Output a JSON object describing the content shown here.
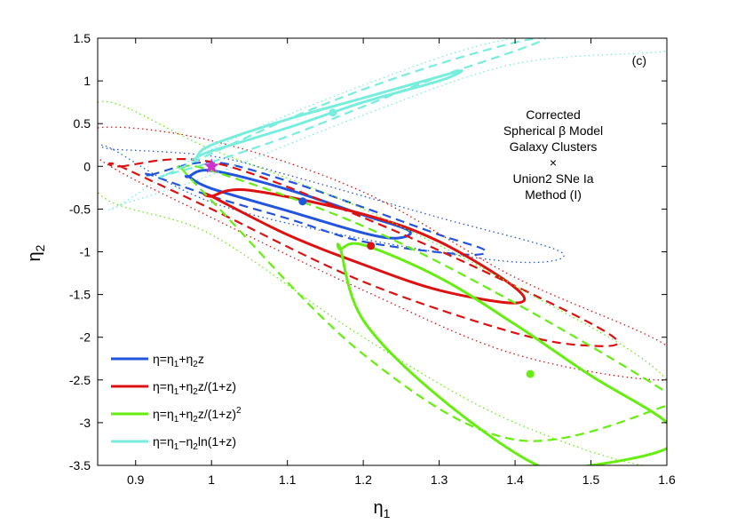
{
  "chart_data": {
    "type": "contour",
    "panel_label": "(c)",
    "xlabel": "η",
    "xlabel_sub": "1",
    "ylabel": "η",
    "ylabel_sub": "2",
    "xlim": [
      0.85,
      1.6
    ],
    "ylim": [
      -3.5,
      1.5
    ],
    "xticks": [
      0.9,
      1.0,
      1.1,
      1.2,
      1.3,
      1.4,
      1.5,
      1.6
    ],
    "xtick_labels": [
      "0.9",
      "1",
      "1.1",
      "1.2",
      "1.3",
      "1.4",
      "1.5",
      "1.6"
    ],
    "yticks": [
      1.5,
      1.0,
      0.5,
      0.0,
      -0.5,
      -1.0,
      -1.5,
      -2.0,
      -2.5,
      -3.0,
      -3.5
    ],
    "ytick_labels": [
      "1.5",
      "1",
      "0.5",
      "0",
      "-0.5",
      "-1",
      "-1.5",
      "-2",
      "-2.5",
      "-3",
      "-3.5"
    ],
    "annotation_lines": [
      "Corrected",
      "Spherical β Model",
      "Galaxy Clusters",
      "×",
      "Union2 SNe Ia",
      "Method (I)"
    ],
    "reference_point": {
      "name": "η1=1, η2=0",
      "x": 1.0,
      "y": 0.0,
      "color": "#cc33cc"
    },
    "series": [
      {
        "name": "linear",
        "legend": "η=η1+η2z",
        "legend_parts": [
          "η=η",
          "1",
          "+η",
          "2",
          "z",
          "",
          ""
        ],
        "color": "#2255dd",
        "best_fit": [
          1.12,
          -0.41
        ],
        "contours": [
          {
            "level": "68.3%",
            "style": "solid",
            "x": [
              0.97,
              1.0,
              1.1,
              1.2,
              1.26,
              1.245,
              1.2,
              1.1,
              1.0,
              0.97
            ],
            "y": [
              -0.12,
              -0.05,
              -0.27,
              -0.57,
              -0.75,
              -0.84,
              -0.78,
              -0.52,
              -0.26,
              -0.12
            ]
          },
          {
            "level": "95.4%",
            "style": "dashed",
            "x": [
              0.92,
              1.0,
              1.1,
              1.2,
              1.3,
              1.36,
              1.33,
              1.2,
              1.1,
              1.0,
              0.92
            ],
            "y": [
              -0.1,
              0.05,
              -0.17,
              -0.48,
              -0.8,
              -0.98,
              -1.03,
              -0.88,
              -0.61,
              -0.35,
              -0.1
            ]
          },
          {
            "level": "99.7%",
            "style": "dotted",
            "x": [
              0.87,
              1.0,
              1.1,
              1.3,
              1.46,
              1.4,
              1.2,
              1.0,
              0.87
            ],
            "y": [
              0.2,
              0.12,
              -0.1,
              -0.6,
              -1.0,
              -1.12,
              -0.85,
              -0.42,
              0.2
            ]
          }
        ]
      },
      {
        "name": "z_over_1pz",
        "legend": "η=η1+η2z/(1+z)",
        "legend_parts": [
          "η=η",
          "1",
          "+η",
          "2",
          "z/(1+z)",
          "",
          ""
        ],
        "color": "#dd1111",
        "best_fit": [
          1.21,
          -0.93
        ],
        "contours": [
          {
            "level": "68.3%",
            "style": "solid",
            "x": [
              1.0,
              1.05,
              1.2,
              1.3,
              1.4,
              1.4,
              1.3,
              1.2,
              1.1,
              1.0
            ],
            "y": [
              -0.35,
              -0.28,
              -0.56,
              -0.88,
              -1.42,
              -1.6,
              -1.45,
              -1.15,
              -0.8,
              -0.35
            ]
          },
          {
            "level": "95.4%",
            "style": "dashed",
            "x": [
              0.88,
              1.0,
              1.2,
              1.4,
              1.53,
              1.5,
              1.4,
              1.2,
              1.0,
              0.88
            ],
            "y": [
              0.0,
              0.05,
              -0.6,
              -1.4,
              -2.0,
              -2.1,
              -1.95,
              -1.35,
              -0.5,
              0.0
            ]
          },
          {
            "level": "99.7%",
            "style": "dotted",
            "x": [
              0.85,
              1.0,
              1.2,
              1.4,
              1.6,
              1.6,
              1.4,
              1.2,
              1.0,
              0.85
            ],
            "y": [
              0.45,
              0.3,
              -0.3,
              -1.3,
              -2.1,
              -2.5,
              -2.2,
              -1.45,
              -0.6,
              0.1
            ]
          }
        ]
      },
      {
        "name": "z_over_1pz_sq",
        "legend": "η=η1+η2z/(1+z)²",
        "legend_parts": [
          "η=η",
          "1",
          "+η",
          "2",
          "z/(1+z)",
          "2",
          ""
        ],
        "color": "#66ee11",
        "best_fit": [
          1.42,
          -2.43
        ],
        "contours": [
          {
            "level": "68.3%",
            "style": "solid",
            "x": [
              1.17,
              1.2,
              1.3,
              1.4,
              1.5,
              1.6,
              1.6,
              1.5,
              1.43,
              1.3,
              1.2,
              1.17
            ],
            "y": [
              -0.97,
              -0.92,
              -1.3,
              -1.85,
              -2.45,
              -3.0,
              -3.3,
              -3.5,
              -3.5,
              -2.7,
              -1.8,
              -0.97
            ]
          },
          {
            "level": "95.4%",
            "style": "dashed",
            "x": [
              0.96,
              1.0,
              1.2,
              1.4,
              1.6,
              1.6,
              1.4,
              1.2,
              1.0,
              0.96
            ],
            "y": [
              -0.02,
              -0.05,
              -0.7,
              -1.6,
              -2.65,
              -2.8,
              -3.2,
              -2.2,
              -0.4,
              -0.02
            ]
          },
          {
            "level": "99.7%",
            "style": "dotted",
            "x": [
              0.85,
              1.0,
              1.2,
              1.4,
              1.6,
              1.6,
              1.4,
              1.2,
              1.0,
              0.85
            ],
            "y": [
              0.75,
              0.2,
              -0.5,
              -1.4,
              -2.5,
              -3.5,
              -3.0,
              -2.0,
              -0.8,
              -0.3
            ]
          }
        ]
      },
      {
        "name": "log",
        "legend": "η=η1−η2ln(1+z)",
        "legend_parts": [
          "η=η",
          "1",
          "−η",
          "2",
          "ln(1+z)",
          "",
          ""
        ],
        "color": "#77eedd",
        "best_fit": [
          1.16,
          0.63
        ],
        "contours": [
          {
            "level": "68.3%",
            "style": "solid",
            "x": [
              0.98,
              1.0,
              1.1,
              1.2,
              1.3,
              1.33,
              1.3,
              1.2,
              1.1,
              1.0,
              0.98
            ],
            "y": [
              0.1,
              0.25,
              0.55,
              0.8,
              1.05,
              1.12,
              1.0,
              0.75,
              0.45,
              0.18,
              0.1
            ]
          },
          {
            "level": "95.4%",
            "style": "dashed",
            "x": [
              0.94,
              1.0,
              1.1,
              1.2,
              1.3,
              1.4,
              1.44,
              1.4,
              1.3,
              1.2,
              1.1,
              1.0,
              0.94
            ],
            "y": [
              -0.1,
              0.15,
              0.55,
              0.9,
              1.2,
              1.45,
              1.5,
              1.35,
              1.05,
              0.7,
              0.35,
              0.05,
              -0.1
            ]
          },
          {
            "level": "99.7%",
            "style": "dotted",
            "x": [
              0.88,
              1.0,
              1.2,
              1.4,
              1.6,
              1.6,
              1.4,
              1.2,
              1.0,
              0.88
            ],
            "y": [
              -0.45,
              0.2,
              0.95,
              1.5,
              1.5,
              1.35,
              1.2,
              0.6,
              -0.1,
              -0.45
            ]
          }
        ]
      }
    ]
  }
}
